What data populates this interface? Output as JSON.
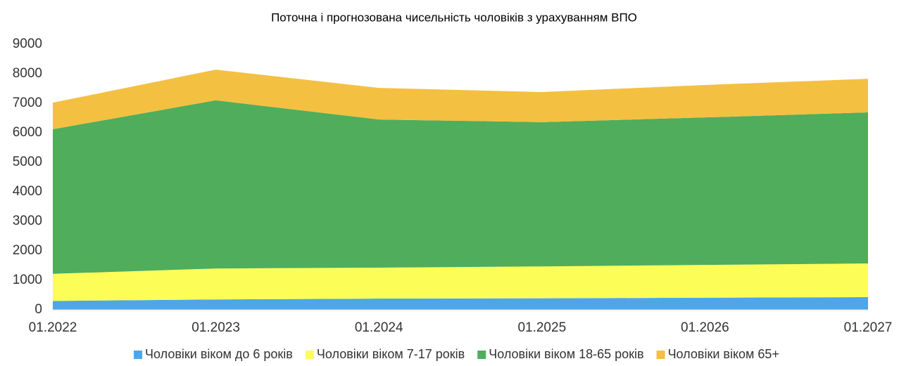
{
  "chart_data": {
    "type": "stacked_area",
    "title": "Поточна і прогнозована чисельність чоловіків з урахуванням ВПО",
    "categories": [
      "01.2022",
      "01.2023",
      "01.2024",
      "01.2025",
      "01.2026",
      "01.2027"
    ],
    "series": [
      {
        "name": "Чоловіки віком до 6 років",
        "color": "#4ea6e8",
        "values": [
          300,
          350,
          380,
          390,
          410,
          430
        ]
      },
      {
        "name": "Чоловіки віком 7-17 років",
        "color": "#fdfd57",
        "values": [
          920,
          1050,
          1050,
          1080,
          1110,
          1140
        ]
      },
      {
        "name": "Чоловіки віком 18-65 років",
        "color": "#50ad5b",
        "values": [
          4900,
          5700,
          5020,
          4890,
          5000,
          5120
        ]
      },
      {
        "name": "Чоловіки віком 65+",
        "color": "#f4c042",
        "values": [
          900,
          1040,
          1070,
          1020,
          1100,
          1140
        ]
      }
    ],
    "ylim": [
      0,
      9000
    ],
    "yticks": [
      0,
      1000,
      2000,
      3000,
      4000,
      5000,
      6000,
      7000,
      8000,
      9000
    ],
    "grid": false,
    "legend": "bottom"
  }
}
